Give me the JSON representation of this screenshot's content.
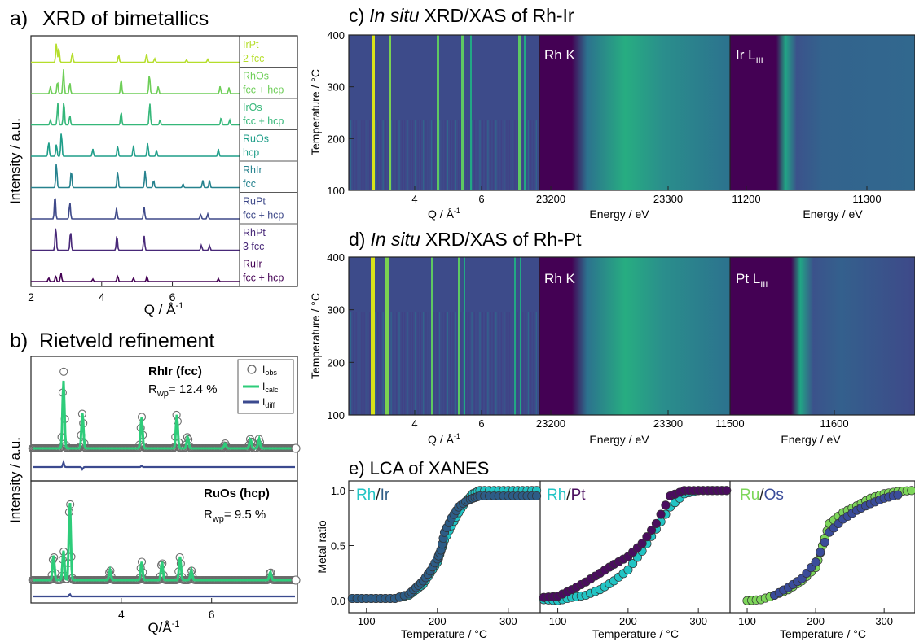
{
  "colors": {
    "frame": "#222222",
    "heat_dark": "#440154",
    "heat_mid": "#31688e",
    "heat_teal": "#21a585",
    "heat_bright": "#d8e219",
    "obs": "#666666",
    "calc": "#2ecc7a",
    "diff": "#3b4a8f",
    "lca_rh": "#22c4c4",
    "lca_ir": "#2d5c86",
    "lca_pt": "#4a0d5e",
    "lca_ru": "#7dd65a",
    "lca_os": "#3a4c9a"
  },
  "panel_a": {
    "label": "a)",
    "title": "XRD of bimetallics",
    "ylabel": "Intensity / a.u.",
    "xlabel": "Q / Å",
    "xlabel_sup": "-1",
    "xticks": [
      "2",
      "4",
      "6"
    ],
    "samples": [
      {
        "name": "IrPt",
        "phase": "2 fcc",
        "color": "#b5de2b"
      },
      {
        "name": "RhOs",
        "phase": "fcc + hcp",
        "color": "#6ece58"
      },
      {
        "name": "IrOs",
        "phase": "fcc + hcp",
        "color": "#35b779"
      },
      {
        "name": "RuOs",
        "phase": "hcp",
        "color": "#1f9e89"
      },
      {
        "name": "RhIr",
        "phase": "fcc",
        "color": "#26828e"
      },
      {
        "name": "RuPt",
        "phase": "fcc + hcp",
        "color": "#3e4989"
      },
      {
        "name": "RhPt",
        "phase": "3 fcc",
        "color": "#482878"
      },
      {
        "name": "RuIr",
        "phase": "fcc + hcp",
        "color": "#440154"
      }
    ]
  },
  "panel_b": {
    "label": "b)",
    "title": "Rietveld refinement",
    "ylabel": "Intensity / a.u.",
    "xlabel": "Q/Å",
    "xlabel_sup": "-1",
    "xticks": [
      "4",
      "6"
    ],
    "top": {
      "sample": "RhIr (fcc)",
      "rwp_label": "R",
      "rwp_sub": "wp",
      "rwp_value": "= 12.4 %"
    },
    "bottom": {
      "sample": "RuOs (hcp)",
      "rwp_label": "R",
      "rwp_sub": "wp",
      "rwp_value": "= 9.5 %"
    },
    "legend": [
      {
        "base": "I",
        "sub": "obs"
      },
      {
        "base": "I",
        "sub": "calc"
      },
      {
        "base": "I",
        "sub": "diff"
      }
    ]
  },
  "panel_c": {
    "label": "c)",
    "title_italic": "In situ",
    "title_rest": "XRD/XAS of Rh-Ir",
    "ylabel": "Temperature / °C",
    "yticks": [
      "100",
      "200",
      "300",
      "400"
    ],
    "xrd_xlabel": "Q / Å",
    "xrd_xlabel_sup": "-1",
    "xrd_xticks": [
      "4",
      "6"
    ],
    "xas1_label": "Rh K",
    "xas1_xlabel": "Energy / eV",
    "xas1_xticks": [
      "23200",
      "23300"
    ],
    "xas2_label_base": "Ir L",
    "xas2_label_sub": "III",
    "xas2_xlabel": "Energy / eV",
    "xas2_xticks": [
      "11200",
      "11300"
    ]
  },
  "panel_d": {
    "label": "d)",
    "title_italic": "In situ",
    "title_rest": "XRD/XAS of Rh-Pt",
    "ylabel": "Temperature / °C",
    "yticks": [
      "100",
      "200",
      "300",
      "400"
    ],
    "xrd_xlabel": "Q / Å",
    "xrd_xlabel_sup": "-1",
    "xrd_xticks": [
      "4",
      "6"
    ],
    "xas1_label": "Rh K",
    "xas1_xlabel": "Energy / eV",
    "xas1_xticks": [
      "23200",
      "23300"
    ],
    "xas2_label_base": "Pt L",
    "xas2_label_sub": "III",
    "xas2_xlabel": "Energy / eV",
    "xas2_xticks": [
      "11500",
      "11600"
    ]
  },
  "panel_e": {
    "label": "e)",
    "title": "LCA of XANES",
    "ylabel": "Metal ratio",
    "yticks": [
      "0.0",
      "0.5",
      "1.0"
    ],
    "xlabel": "Temperature / °C",
    "xticks": [
      "100",
      "200",
      "300"
    ]
  },
  "chart_data": [
    {
      "type": "line",
      "title": "XRD of bimetallics",
      "xlabel": "Q / Å-1",
      "ylabel": "Intensity / a.u.",
      "xlim": [
        2,
        7.9
      ],
      "series": [
        {
          "name": "IrPt",
          "peaks": [
            [
              2.72,
              0.8
            ],
            [
              2.79,
              0.6
            ],
            [
              3.17,
              0.4
            ],
            [
              4.48,
              0.3
            ],
            [
              5.27,
              0.35
            ],
            [
              5.5,
              0.15
            ],
            [
              6.4,
              0.1
            ],
            [
              7.0,
              0.12
            ]
          ]
        },
        {
          "name": "RhOs",
          "peaks": [
            [
              2.55,
              0.3
            ],
            [
              2.75,
              0.5
            ],
            [
              2.92,
              1.0
            ],
            [
              3.1,
              0.45
            ],
            [
              4.55,
              0.6
            ],
            [
              5.35,
              0.8
            ],
            [
              5.6,
              0.3
            ],
            [
              7.35,
              0.3
            ],
            [
              7.6,
              0.25
            ]
          ]
        },
        {
          "name": "IrOs",
          "peaks": [
            [
              2.55,
              0.2
            ],
            [
              2.76,
              0.9
            ],
            [
              2.93,
              1.0
            ],
            [
              3.1,
              0.4
            ],
            [
              4.55,
              0.55
            ],
            [
              5.36,
              0.9
            ],
            [
              5.65,
              0.2
            ],
            [
              7.38,
              0.3
            ],
            [
              7.62,
              0.2
            ]
          ]
        },
        {
          "name": "RuOs",
          "peaks": [
            [
              2.5,
              0.6
            ],
            [
              2.72,
              0.5
            ],
            [
              2.86,
              1.0
            ],
            [
              3.75,
              0.3
            ],
            [
              4.45,
              0.45
            ],
            [
              4.9,
              0.45
            ],
            [
              5.3,
              0.55
            ],
            [
              5.55,
              0.25
            ],
            [
              7.3,
              0.3
            ]
          ]
        },
        {
          "name": "RhIr",
          "peaks": [
            [
              2.72,
              1.0
            ],
            [
              3.14,
              0.7
            ],
            [
              4.45,
              0.7
            ],
            [
              5.23,
              0.7
            ],
            [
              5.47,
              0.3
            ],
            [
              6.3,
              0.15
            ],
            [
              6.86,
              0.3
            ],
            [
              7.05,
              0.3
            ]
          ]
        },
        {
          "name": "RuPt",
          "peaks": [
            [
              2.68,
              1.0
            ],
            [
              3.1,
              0.7
            ],
            [
              4.42,
              0.45
            ],
            [
              5.2,
              0.5
            ],
            [
              6.8,
              0.2
            ],
            [
              7.0,
              0.2
            ]
          ]
        },
        {
          "name": "RhPt",
          "peaks": [
            [
              2.7,
              1.0
            ],
            [
              3.12,
              0.8
            ],
            [
              4.43,
              0.6
            ],
            [
              5.2,
              0.6
            ],
            [
              6.82,
              0.2
            ],
            [
              7.05,
              0.2
            ]
          ]
        },
        {
          "name": "RuIr",
          "peaks": [
            [
              2.5,
              0.15
            ],
            [
              2.7,
              0.25
            ],
            [
              2.85,
              0.35
            ],
            [
              3.75,
              0.1
            ],
            [
              4.45,
              0.25
            ],
            [
              4.9,
              0.15
            ],
            [
              5.28,
              0.2
            ],
            [
              7.3,
              0.12
            ]
          ]
        }
      ]
    },
    {
      "type": "line",
      "title": "Rietveld refinement RhIr (fcc)",
      "xlabel": "Q/Å-1",
      "xlim": [
        2,
        7.9
      ],
      "series": [
        {
          "name": "Iobs",
          "peaks": [
            [
              2.72,
              1.0
            ],
            [
              3.14,
              0.45
            ],
            [
              4.45,
              0.4
            ],
            [
              5.23,
              0.45
            ],
            [
              5.47,
              0.15
            ],
            [
              6.3,
              0.06
            ],
            [
              6.86,
              0.12
            ],
            [
              7.05,
              0.12
            ]
          ]
        },
        {
          "name": "Icalc",
          "peaks": [
            [
              2.72,
              0.85
            ],
            [
              3.14,
              0.45
            ],
            [
              4.45,
              0.4
            ],
            [
              5.23,
              0.42
            ],
            [
              5.47,
              0.15
            ],
            [
              6.3,
              0.06
            ],
            [
              6.86,
              0.12
            ],
            [
              7.05,
              0.12
            ]
          ]
        },
        {
          "name": "Idiff",
          "peaks": [
            [
              2.72,
              0.04
            ],
            [
              3.14,
              -0.02
            ],
            [
              4.45,
              0.01
            ]
          ]
        }
      ]
    },
    {
      "type": "line",
      "title": "Rietveld refinement RuOs (hcp)",
      "xlabel": "Q/Å-1",
      "xlim": [
        2,
        7.9
      ],
      "series": [
        {
          "name": "Iobs",
          "peaks": [
            [
              2.5,
              0.3
            ],
            [
              2.72,
              0.35
            ],
            [
              2.86,
              1.0
            ],
            [
              3.75,
              0.12
            ],
            [
              4.45,
              0.22
            ],
            [
              4.9,
              0.22
            ],
            [
              5.3,
              0.28
            ],
            [
              5.55,
              0.12
            ],
            [
              7.3,
              0.1
            ]
          ]
        },
        {
          "name": "Icalc",
          "peaks": [
            [
              2.5,
              0.3
            ],
            [
              2.72,
              0.35
            ],
            [
              2.86,
              0.95
            ],
            [
              3.75,
              0.12
            ],
            [
              4.45,
              0.22
            ],
            [
              4.9,
              0.22
            ],
            [
              5.3,
              0.28
            ],
            [
              5.55,
              0.12
            ],
            [
              7.3,
              0.1
            ]
          ]
        },
        {
          "name": "Idiff",
          "peaks": [
            [
              2.86,
              0.02
            ]
          ]
        }
      ]
    },
    {
      "type": "scatter",
      "title": "Rh/Ir",
      "xlabel": "Temperature / °C",
      "ylabel": "Metal ratio",
      "xlim": [
        75,
        345
      ],
      "ylim": [
        -0.05,
        1.05
      ],
      "series": [
        {
          "name": "Rh",
          "x": [
            80,
            100,
            120,
            140,
            160,
            170,
            180,
            190,
            200,
            205,
            210,
            220,
            230,
            240,
            250,
            260,
            280,
            300,
            320,
            340
          ],
          "y": [
            0.02,
            0.02,
            0.02,
            0.02,
            0.05,
            0.1,
            0.15,
            0.25,
            0.35,
            0.45,
            0.55,
            0.68,
            0.8,
            0.9,
            0.97,
            1.0,
            1.0,
            1.0,
            1.0,
            1.0
          ]
        },
        {
          "name": "Ir",
          "x": [
            80,
            100,
            120,
            140,
            160,
            170,
            180,
            190,
            200,
            205,
            210,
            220,
            230,
            240,
            250,
            260,
            280,
            300,
            320,
            340
          ],
          "y": [
            0.02,
            0.02,
            0.02,
            0.02,
            0.06,
            0.12,
            0.18,
            0.27,
            0.38,
            0.46,
            0.62,
            0.75,
            0.85,
            0.9,
            0.93,
            0.95,
            0.95,
            0.95,
            0.95,
            0.95
          ]
        }
      ]
    },
    {
      "type": "scatter",
      "title": "Rh/Pt",
      "xlabel": "Temperature / °C",
      "ylabel": "Metal ratio",
      "xlim": [
        75,
        345
      ],
      "ylim": [
        -0.05,
        1.05
      ],
      "series": [
        {
          "name": "Rh",
          "x": [
            80,
            100,
            120,
            140,
            160,
            180,
            200,
            220,
            240,
            260,
            280,
            300,
            320,
            340
          ],
          "y": [
            0.01,
            0.0,
            0.03,
            0.05,
            0.1,
            0.18,
            0.28,
            0.45,
            0.65,
            0.85,
            0.97,
            1.0,
            1.0,
            1.0
          ]
        },
        {
          "name": "Pt",
          "x": [
            80,
            100,
            120,
            140,
            160,
            180,
            200,
            220,
            240,
            260,
            280,
            300,
            320,
            340
          ],
          "y": [
            0.03,
            0.04,
            0.1,
            0.17,
            0.25,
            0.33,
            0.4,
            0.52,
            0.7,
            0.95,
            1.0,
            1.0,
            1.0,
            1.0
          ]
        }
      ]
    },
    {
      "type": "scatter",
      "title": "Ru/Os",
      "xlabel": "Temperature / °C",
      "ylabel": "Metal ratio",
      "xlim": [
        75,
        345
      ],
      "ylim": [
        -0.05,
        1.05
      ],
      "series": [
        {
          "name": "Ru",
          "x": [
            100,
            120,
            140,
            160,
            180,
            200,
            210,
            220,
            240,
            260,
            280,
            300,
            320,
            340
          ],
          "y": [
            0.0,
            0.01,
            0.05,
            0.1,
            0.18,
            0.3,
            0.5,
            0.7,
            0.8,
            0.86,
            0.93,
            0.97,
            0.99,
            1.0
          ]
        },
        {
          "name": "Os",
          "x": [
            140,
            160,
            180,
            200,
            220,
            240,
            260,
            280,
            300,
            320
          ],
          "y": [
            0.05,
            0.12,
            0.2,
            0.35,
            0.62,
            0.74,
            0.82,
            0.88,
            0.93,
            0.96
          ]
        }
      ]
    }
  ]
}
